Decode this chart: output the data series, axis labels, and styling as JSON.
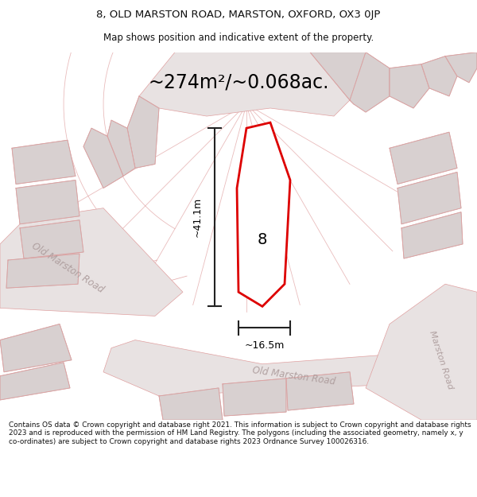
{
  "title_line1": "8, OLD MARSTON ROAD, MARSTON, OXFORD, OX3 0JP",
  "title_line2": "Map shows position and indicative extent of the property.",
  "area_text": "~274m²/~0.068ac.",
  "dim_vertical": "~41.1m",
  "dim_horizontal": "~16.5m",
  "property_number": "8",
  "road_label_left": "Old Marston Road",
  "road_label_bottom": "Old Marston Road",
  "road_label_right": "Marston Road",
  "footer_text": "Contains OS data © Crown copyright and database right 2021. This information is subject to Crown copyright and database rights 2023 and is reproduced with the permission of HM Land Registry. The polygons (including the associated geometry, namely x, y co-ordinates) are subject to Crown copyright and database rights 2023 Ordnance Survey 100026316.",
  "bg_color": "#ffffff",
  "map_bg": "#f2eeee",
  "road_color": "#e8e2e2",
  "plot_line_color": "#dd0000",
  "map_line_color": "#e0a0a0",
  "building_fill": "#d8d0d0",
  "building_edge": "#c8b8b8",
  "dim_line_color": "#222222",
  "road_text_color": "#b0a0a0",
  "footer_color": "#111111",
  "title_color": "#111111"
}
